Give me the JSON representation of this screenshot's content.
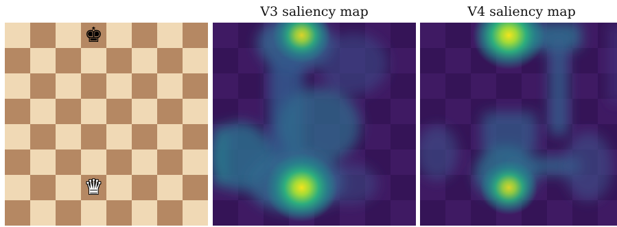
{
  "board": {
    "files": 8,
    "ranks": 8,
    "pieces": [
      {
        "square": "d8",
        "symbol": "♚",
        "color": "black",
        "name": "king"
      },
      {
        "square": "d2",
        "symbol": "♛",
        "color": "white",
        "name": "queen"
      }
    ],
    "colors": {
      "light": "#f0d9b5",
      "dark": "#b58863"
    }
  },
  "maps": [
    {
      "title": "V3 saliency map",
      "colormap": "viridis",
      "hotspots": [
        {
          "square": "d8",
          "intensity": 0.72
        },
        {
          "square": "d2",
          "intensity": 1.0
        }
      ]
    },
    {
      "title": "V4 saliency map",
      "colormap": "viridis",
      "hotspots": [
        {
          "square": "d8",
          "intensity": 1.0
        },
        {
          "square": "d2",
          "intensity": 0.7
        }
      ]
    }
  ]
}
